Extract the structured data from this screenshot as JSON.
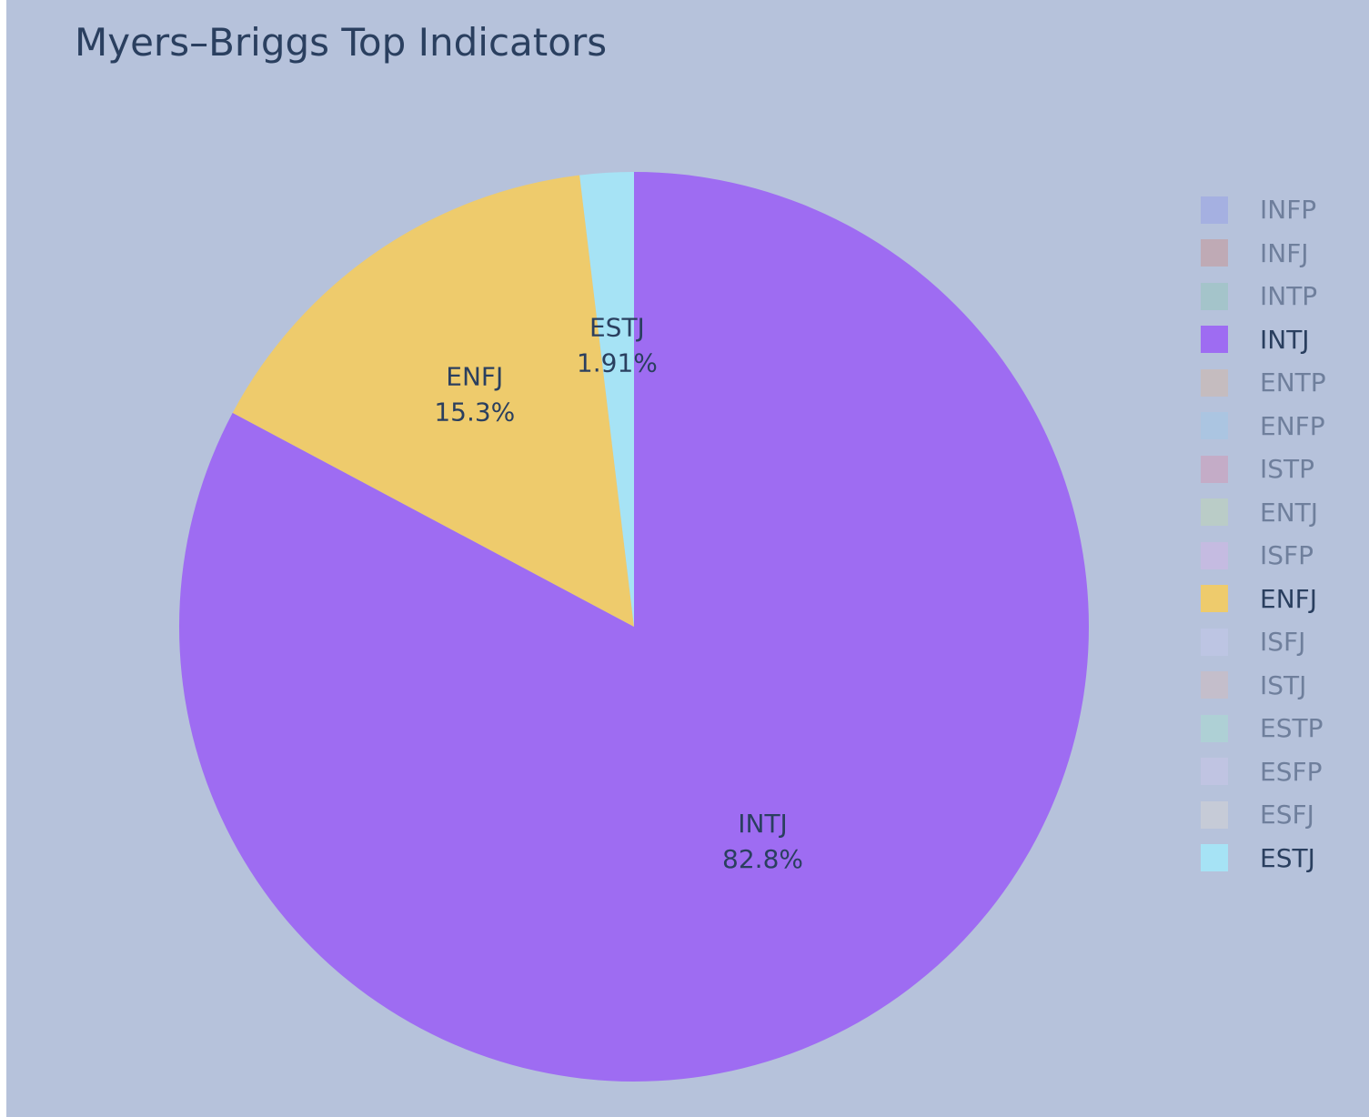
{
  "chart_data": {
    "type": "pie",
    "title": "Myers–Briggs Top Indicators",
    "slices": [
      {
        "label": "INTJ",
        "value": 82.8,
        "text": "82.8%",
        "color": "#9e6cf2"
      },
      {
        "label": "ENFJ",
        "value": 15.3,
        "text": "15.3%",
        "color": "#eecb6c"
      },
      {
        "label": "ESTJ",
        "value": 1.91,
        "text": "1.91%",
        "color": "#a6e3f5"
      }
    ],
    "legend": {
      "placement": "right",
      "items": [
        {
          "label": "INFP",
          "color": "#949ee8",
          "visible": false
        },
        {
          "label": "INFJ",
          "color": "#c8918f",
          "visible": false
        },
        {
          "label": "INTP",
          "color": "#92c6ba",
          "visible": false
        },
        {
          "label": "INTJ",
          "color": "#9e6cf2",
          "visible": true
        },
        {
          "label": "ENTP",
          "color": "#d3b5a3",
          "visible": false
        },
        {
          "label": "ENFP",
          "color": "#9fc7e7",
          "visible": false
        },
        {
          "label": "ISTP",
          "color": "#d195b4",
          "visible": false
        },
        {
          "label": "ENTJ",
          "color": "#bed5b4",
          "visible": false
        },
        {
          "label": "ISFP",
          "color": "#d3b4e7",
          "visible": false
        },
        {
          "label": "ENFJ",
          "color": "#eecb6c",
          "visible": true
        },
        {
          "label": "ISFJ",
          "color": "#c4c8ec",
          "visible": false
        },
        {
          "label": "ISTJ",
          "color": "#d2b9bc",
          "visible": false
        },
        {
          "label": "ESTP",
          "color": "#a5decf",
          "visible": false
        },
        {
          "label": "ESFP",
          "color": "#cac6ea",
          "visible": false
        },
        {
          "label": "ESFJ",
          "color": "#d6d4d3",
          "visible": false
        },
        {
          "label": "ESTJ",
          "color": "#a6e3f5",
          "visible": true
        }
      ]
    }
  }
}
